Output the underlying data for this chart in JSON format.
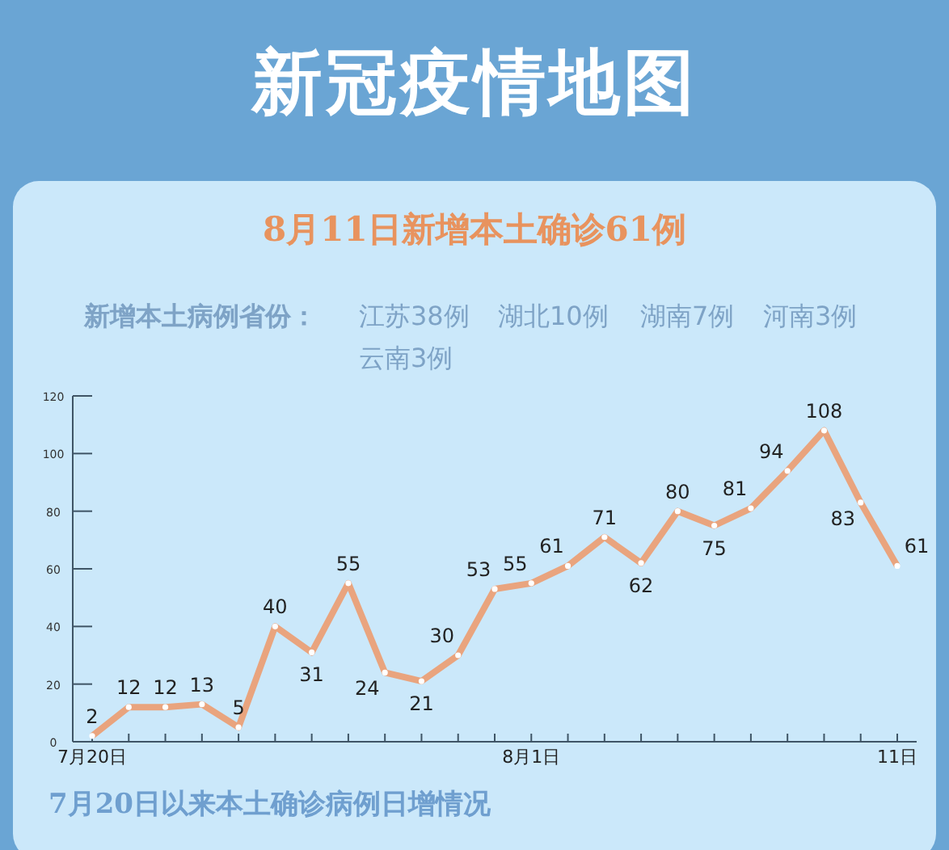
{
  "chart_data": {
    "type": "line",
    "title": "新冠疫情地图",
    "subtitle": "8月11日新增本土确诊61例",
    "annotations": [
      "新增本土病例省份：",
      "江苏38例",
      "湖北10例",
      "湖南7例",
      "河南3例",
      "云南3例",
      "7月20日以来本土确诊病例日增情况"
    ],
    "categories": [
      "7月20日",
      null,
      null,
      null,
      null,
      null,
      null,
      null,
      null,
      null,
      null,
      null,
      "8月1日",
      null,
      null,
      null,
      null,
      null,
      null,
      null,
      null,
      null,
      "11日"
    ],
    "series": [
      {
        "color": "#e9a47e",
        "values": [
          2,
          12,
          12,
          13,
          5,
          40,
          31,
          55,
          24,
          21,
          30,
          53,
          55,
          61,
          71,
          62,
          80,
          75,
          81,
          94,
          108,
          83,
          61
        ]
      }
    ],
    "ylim": [
      0,
      120
    ],
    "yticks": [
      0,
      20,
      40,
      60,
      80,
      100,
      120
    ],
    "data_labels": true,
    "marker": "circle"
  }
}
